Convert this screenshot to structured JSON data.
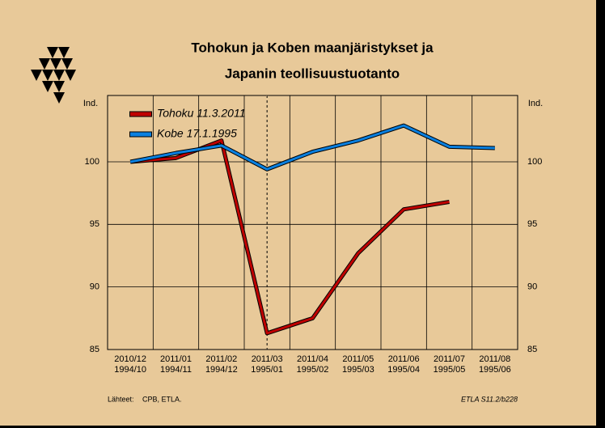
{
  "chart_data": {
    "type": "line",
    "title_lines": [
      "Tohokun ja Koben maanjäristykset ja",
      "Japanin teollisuustuotanto"
    ],
    "y_label": "Ind.",
    "y2_label": "Ind.",
    "categories": [
      [
        "2010/12",
        "1994/10"
      ],
      [
        "2011/01",
        "1994/11"
      ],
      [
        "2011/02",
        "1994/12"
      ],
      [
        "2011/03",
        "1995/01"
      ],
      [
        "2011/04",
        "1995/02"
      ],
      [
        "2011/05",
        "1995/03"
      ],
      [
        "2011/06",
        "1995/04"
      ],
      [
        "2011/07",
        "1995/05"
      ],
      [
        "2011/08",
        "1995/06"
      ]
    ],
    "series": [
      {
        "name": "Tohoku 11.3.2011",
        "color": "#c00000",
        "values": [
          100.0,
          100.3,
          101.7,
          86.3,
          87.5,
          92.7,
          96.2,
          96.8,
          null
        ]
      },
      {
        "name": "Kobe 17.1.1995",
        "color": "#0a80e0",
        "values": [
          100.0,
          100.7,
          101.3,
          99.4,
          100.8,
          101.7,
          102.9,
          101.2,
          101.1
        ]
      }
    ],
    "ylim": [
      85,
      105.3
    ],
    "yticks": [
      85,
      90,
      95,
      100
    ],
    "grid": true,
    "vline_index": 3,
    "sources_label": "Lähteet:",
    "sources": "CPB, ETLA.",
    "code": "ETLA S11.2/b228"
  }
}
